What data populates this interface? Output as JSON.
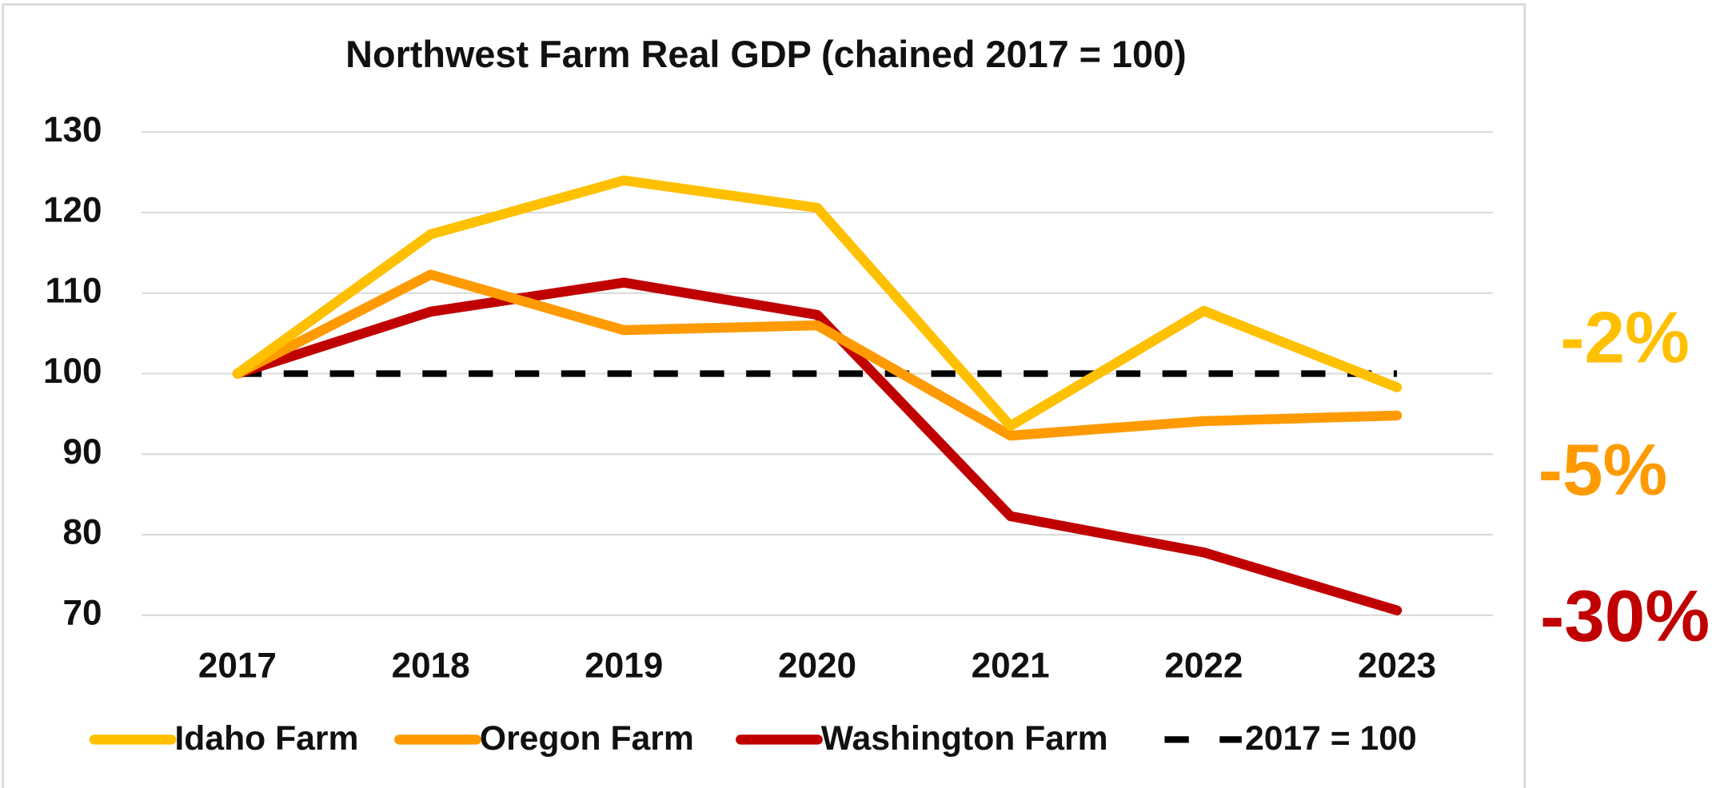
{
  "chart_data": {
    "type": "line",
    "title": "Northwest Farm Real GDP (chained 2017 = 100)",
    "categories": [
      "2017",
      "2018",
      "2019",
      "2020",
      "2021",
      "2022",
      "2023"
    ],
    "series": [
      {
        "name": "Idaho Farm",
        "color": "#ffc000",
        "values": [
          100,
          117.3,
          124,
          120.6,
          93.5,
          107.8,
          98.3
        ]
      },
      {
        "name": "Oregon Farm",
        "color": "#ff9a00",
        "values": [
          100,
          112.3,
          105.4,
          106,
          92.3,
          94.1,
          94.8
        ]
      },
      {
        "name": "Washington Farm",
        "color": "#c00000",
        "values": [
          100,
          107.7,
          111.3,
          107.3,
          82.3,
          77.8,
          70.6
        ]
      },
      {
        "name": "2017 = 100",
        "color": "#000000",
        "dashed": true,
        "values": [
          100,
          100,
          100,
          100,
          100,
          100,
          100
        ]
      }
    ],
    "ylim": [
      70,
      130
    ],
    "yticks": [
      70,
      80,
      90,
      100,
      110,
      120,
      130
    ],
    "grid": true,
    "legend": "bottom",
    "annotations": [
      {
        "text": "-2%",
        "color": "#ffc000"
      },
      {
        "text": "-5%",
        "color": "#ff9a00"
      },
      {
        "text": "-30%",
        "color": "#c00000"
      }
    ]
  }
}
